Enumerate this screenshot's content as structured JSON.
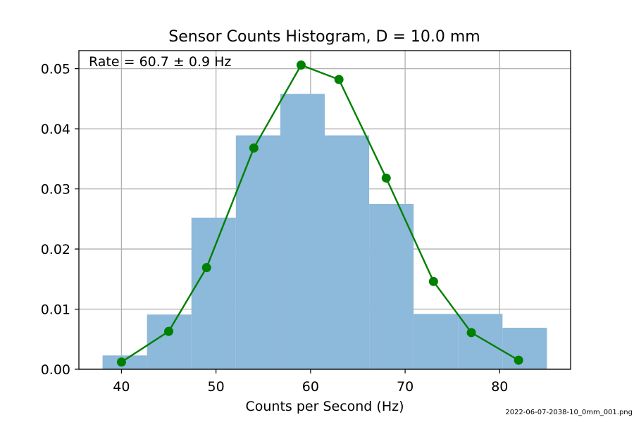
{
  "chart_data": {
    "type": "bar",
    "title": "Sensor Counts Histogram, D = 10.0 mm",
    "xlabel": "Counts per Second (Hz)",
    "ylabel": "",
    "annotation": "Rate = 60.7 ± 0.9 Hz",
    "xlim": [
      35.5,
      87.5
    ],
    "ylim": [
      0,
      0.053
    ],
    "xticks": [
      40,
      50,
      60,
      70,
      80
    ],
    "yticks": [
      0.0,
      0.01,
      0.02,
      0.03,
      0.04,
      0.05
    ],
    "xtick_labels": [
      "40",
      "50",
      "60",
      "70",
      "80"
    ],
    "ytick_labels": [
      "0.00",
      "0.01",
      "0.02",
      "0.03",
      "0.04",
      "0.05"
    ],
    "grid": true,
    "histogram": {
      "color": "#8db9da",
      "bins": [
        {
          "x0": 38.0,
          "x1": 42.7,
          "value": 0.0023
        },
        {
          "x0": 42.7,
          "x1": 47.4,
          "value": 0.0091
        },
        {
          "x0": 47.4,
          "x1": 52.1,
          "value": 0.0252
        },
        {
          "x0": 52.1,
          "x1": 56.8,
          "value": 0.0389
        },
        {
          "x0": 56.8,
          "x1": 61.5,
          "value": 0.0458
        },
        {
          "x0": 61.5,
          "x1": 66.2,
          "value": 0.0389
        },
        {
          "x0": 66.2,
          "x1": 70.9,
          "value": 0.0275
        },
        {
          "x0": 70.9,
          "x1": 75.6,
          "value": 0.0092
        },
        {
          "x0": 75.6,
          "x1": 80.3,
          "value": 0.0092
        },
        {
          "x0": 80.3,
          "x1": 85.0,
          "value": 0.0069
        }
      ]
    },
    "fit_line": {
      "color": "#008000",
      "x": [
        40,
        45,
        49,
        54,
        59,
        63,
        68,
        73,
        77,
        82
      ],
      "y": [
        0.0012,
        0.0063,
        0.0169,
        0.0368,
        0.0506,
        0.0482,
        0.0318,
        0.0146,
        0.0061,
        0.0015
      ]
    }
  },
  "footer": {
    "filename": "2022-06-07-2038-10_0mm_001.png"
  }
}
